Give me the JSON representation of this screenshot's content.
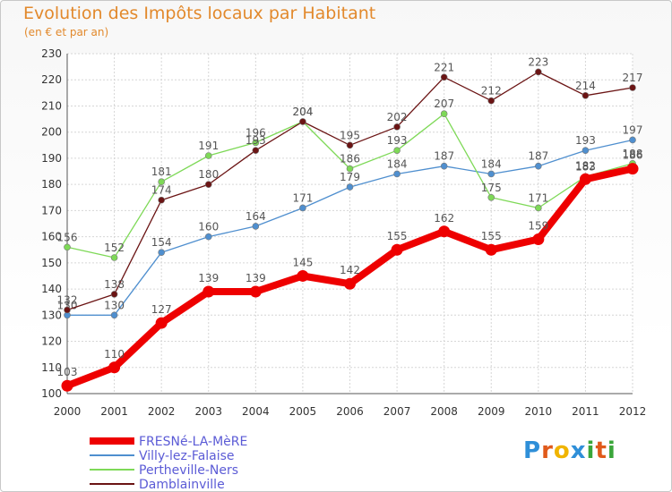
{
  "title": "Evolution des Impôts locaux par Habitant",
  "subtitle": "(en € et par an)",
  "logo": {
    "text": "Proxiti",
    "letters": [
      "P",
      "r",
      "o",
      "x",
      "i",
      "t",
      "i"
    ],
    "colors": [
      "#2f8fd8",
      "#e05a1b",
      "#f0b400",
      "#2f8fd8",
      "#3aa63a",
      "#e05a1b",
      "#3aa63a"
    ]
  },
  "chart_data": {
    "type": "line",
    "title": "Evolution des Impôts locaux par Habitant",
    "subtitle": "(en € et par an)",
    "xlabel": "",
    "ylabel": "",
    "x": [
      "2000",
      "2001",
      "2002",
      "2003",
      "2004",
      "2005",
      "2006",
      "2007",
      "2008",
      "2009",
      "2010",
      "2011",
      "2012"
    ],
    "ylim": [
      100,
      230
    ],
    "yticks": [
      100,
      110,
      120,
      130,
      140,
      150,
      160,
      170,
      180,
      190,
      200,
      210,
      220,
      230
    ],
    "grid": true,
    "legend_position": "bottom-left",
    "series": [
      {
        "name": "FRESNé-LA-MèRE",
        "color": "#ee0000",
        "emphasis": true,
        "values": [
          103,
          110,
          127,
          139,
          139,
          145,
          142,
          155,
          162,
          155,
          159,
          182,
          186
        ]
      },
      {
        "name": "Villy-lez-Falaise",
        "color": "#4f8fcf",
        "emphasis": false,
        "values": [
          130,
          130,
          154,
          160,
          164,
          171,
          179,
          184,
          187,
          184,
          187,
          193,
          197
        ]
      },
      {
        "name": "Pertheville-Ners",
        "color": "#7ed957",
        "emphasis": false,
        "values": [
          156,
          152,
          181,
          191,
          196,
          204,
          186,
          193,
          207,
          175,
          171,
          183,
          188
        ]
      },
      {
        "name": "Damblainville",
        "color": "#6b1414",
        "emphasis": false,
        "values": [
          132,
          138,
          174,
          180,
          193,
          204,
          195,
          202,
          221,
          212,
          223,
          214,
          217
        ]
      }
    ]
  }
}
